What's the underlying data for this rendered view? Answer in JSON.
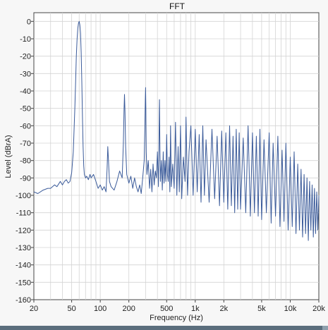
{
  "colors": {
    "series": "#3b5b9a",
    "grid": "#d4d4d4",
    "plot_background": "#ffffff",
    "window_background": "#f7f7f7",
    "status_strip": "#5b6e7d"
  },
  "chart_data": {
    "type": "line",
    "title": "FFT",
    "xlabel": "Frequency (Hz)",
    "ylabel": "Level (dBrA)",
    "x_scale": "log",
    "xlim": [
      20,
      20000
    ],
    "ylim": [
      -160,
      5
    ],
    "grid": true,
    "legend": "none",
    "x_ticks": [
      {
        "value": 20,
        "label": "20"
      },
      {
        "value": 50,
        "label": "50"
      },
      {
        "value": 100,
        "label": "100"
      },
      {
        "value": 200,
        "label": "200"
      },
      {
        "value": 500,
        "label": "500"
      },
      {
        "value": 1000,
        "label": "1k"
      },
      {
        "value": 2000,
        "label": "2k"
      },
      {
        "value": 5000,
        "label": "5k"
      },
      {
        "value": 10000,
        "label": "10k"
      },
      {
        "value": 20000,
        "label": "20k"
      }
    ],
    "y_ticks": [
      0,
      -10,
      -20,
      -30,
      -40,
      -50,
      -60,
      -70,
      -80,
      -90,
      -100,
      -110,
      -120,
      -130,
      -140,
      -150,
      -160
    ],
    "series": [
      {
        "x": [
          20,
          22,
          25,
          28,
          30,
          33,
          35,
          38,
          40,
          42,
          44,
          46,
          48,
          50,
          52,
          54,
          55,
          56,
          57,
          58,
          59,
          60,
          61,
          62,
          63,
          64,
          65,
          66,
          67,
          68,
          70,
          72,
          75,
          78,
          80,
          85,
          90,
          95,
          100,
          105,
          110,
          115,
          118,
          120,
          122,
          125,
          130,
          140,
          150,
          160,
          170,
          175,
          178,
          180,
          182,
          185,
          190,
          200,
          210,
          220,
          230,
          240,
          250,
          260,
          270,
          280,
          290,
          295,
          298,
          300,
          302,
          305,
          310,
          320,
          330,
          340,
          350,
          360,
          370,
          380,
          390,
          400,
          410,
          415,
          418,
          420,
          422,
          425,
          430,
          440,
          450,
          460,
          470,
          480,
          490,
          500,
          510,
          520,
          530,
          540,
          550,
          560,
          580,
          600,
          620,
          640,
          660,
          680,
          700,
          720,
          750,
          780,
          800,
          830,
          860,
          900,
          950,
          1000,
          1050,
          1100,
          1150,
          1200,
          1250,
          1300,
          1400,
          1500,
          1600,
          1700,
          1800,
          1900,
          2000,
          2100,
          2200,
          2300,
          2400,
          2500,
          2600,
          2700,
          2800,
          2900,
          3000,
          3200,
          3400,
          3600,
          3800,
          4000,
          4200,
          4400,
          4600,
          4800,
          5000,
          5300,
          5600,
          6000,
          6300,
          6600,
          7000,
          7400,
          7800,
          8200,
          8600,
          9000,
          9500,
          10000,
          10500,
          11000,
          11500,
          12000,
          12500,
          13000,
          13500,
          14000,
          14500,
          15000,
          15500,
          16000,
          16500,
          17000,
          17500,
          18000,
          18500,
          19000,
          19500,
          20000
        ],
        "y": [
          -98,
          -99,
          -97,
          -96,
          -96,
          -94,
          -95,
          -92,
          -94,
          -92,
          -91,
          -93,
          -92,
          -87,
          -75,
          -50,
          -35,
          -20,
          -10,
          -4,
          -1,
          0,
          -2,
          -7,
          -18,
          -35,
          -55,
          -72,
          -83,
          -88,
          -90,
          -89,
          -91,
          -88,
          -90,
          -88,
          -92,
          -96,
          -94,
          -97,
          -95,
          -98,
          -85,
          -72,
          -80,
          -92,
          -95,
          -97,
          -92,
          -86,
          -90,
          -70,
          -50,
          -42,
          -52,
          -72,
          -88,
          -93,
          -89,
          -96,
          -90,
          -95,
          -98,
          -94,
          -99,
          -90,
          -80,
          -60,
          -45,
          -38,
          -50,
          -75,
          -88,
          -80,
          -96,
          -85,
          -98,
          -82,
          -94,
          -86,
          -90,
          -75,
          -95,
          -70,
          -52,
          -45,
          -55,
          -75,
          -92,
          -80,
          -97,
          -75,
          -93,
          -80,
          -92,
          -65,
          -88,
          -92,
          -78,
          -98,
          -60,
          -95,
          -82,
          -96,
          -58,
          -100,
          -72,
          -98,
          -60,
          -102,
          -78,
          -92,
          -55,
          -100,
          -75,
          -60,
          -100,
          -62,
          -98,
          -65,
          -104,
          -60,
          -100,
          -68,
          -104,
          -62,
          -102,
          -66,
          -106,
          -63,
          -104,
          -64,
          -108,
          -60,
          -106,
          -66,
          -110,
          -62,
          -108,
          -64,
          -108,
          -67,
          -110,
          -60,
          -112,
          -64,
          -110,
          -66,
          -112,
          -62,
          -114,
          -68,
          -110,
          -64,
          -116,
          -70,
          -112,
          -66,
          -118,
          -74,
          -115,
          -70,
          -120,
          -78,
          -118,
          -75,
          -122,
          -82,
          -120,
          -85,
          -124,
          -88,
          -122,
          -90,
          -126,
          -92,
          -120,
          -94,
          -124,
          -96,
          -122,
          -98,
          -120,
          -100
        ]
      }
    ]
  }
}
